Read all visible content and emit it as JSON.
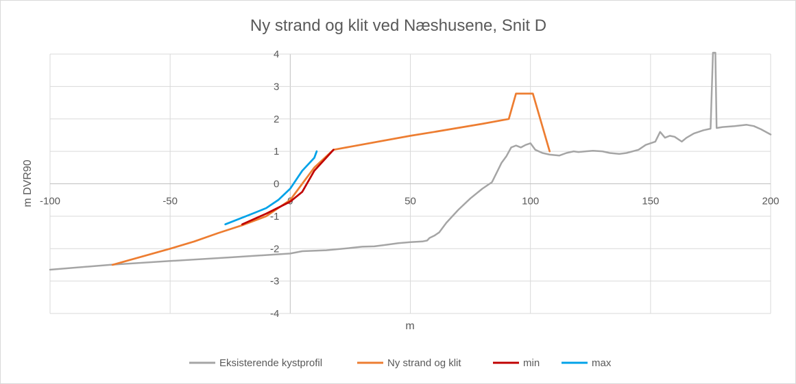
{
  "chart_data": {
    "type": "line",
    "title": "Ny strand og klit ved Næshusene,  Snit D",
    "xlabel": "m",
    "ylabel": "m DVR90",
    "xlim": [
      -100,
      200
    ],
    "ylim": [
      -4,
      4
    ],
    "x_ticks": [
      "-100",
      "-50",
      "0",
      "50",
      "100",
      "150",
      "200"
    ],
    "y_ticks": [
      "-4",
      "-3",
      "-2",
      "-1",
      "0",
      "1",
      "2",
      "3",
      "4"
    ],
    "grid": true,
    "legend_position": "bottom",
    "series": [
      {
        "name": "Eksisterende kystprofil",
        "color": "#a5a5a5",
        "points": [
          [
            -100,
            -2.65
          ],
          [
            -75,
            -2.5
          ],
          [
            -50,
            -2.38
          ],
          [
            -25,
            -2.27
          ],
          [
            0,
            -2.15
          ],
          [
            5,
            -2.08
          ],
          [
            15,
            -2.05
          ],
          [
            25,
            -1.98
          ],
          [
            30,
            -1.94
          ],
          [
            35,
            -1.93
          ],
          [
            40,
            -1.88
          ],
          [
            45,
            -1.83
          ],
          [
            50,
            -1.8
          ],
          [
            55,
            -1.78
          ],
          [
            57,
            -1.75
          ],
          [
            58,
            -1.67
          ],
          [
            60,
            -1.6
          ],
          [
            62,
            -1.5
          ],
          [
            65,
            -1.2
          ],
          [
            70,
            -0.8
          ],
          [
            75,
            -0.45
          ],
          [
            80,
            -0.15
          ],
          [
            84,
            0.05
          ],
          [
            86,
            0.35
          ],
          [
            88,
            0.65
          ],
          [
            90,
            0.85
          ],
          [
            92,
            1.12
          ],
          [
            94,
            1.18
          ],
          [
            96,
            1.12
          ],
          [
            98,
            1.2
          ],
          [
            100,
            1.25
          ],
          [
            102,
            1.05
          ],
          [
            105,
            0.95
          ],
          [
            108,
            0.9
          ],
          [
            112,
            0.87
          ],
          [
            115,
            0.95
          ],
          [
            118,
            1.0
          ],
          [
            120,
            0.98
          ],
          [
            123,
            1.0
          ],
          [
            126,
            1.02
          ],
          [
            130,
            1.0
          ],
          [
            133,
            0.95
          ],
          [
            137,
            0.92
          ],
          [
            140,
            0.95
          ],
          [
            145,
            1.05
          ],
          [
            148,
            1.2
          ],
          [
            150,
            1.25
          ],
          [
            152,
            1.3
          ],
          [
            154,
            1.6
          ],
          [
            156,
            1.42
          ],
          [
            158,
            1.48
          ],
          [
            160,
            1.45
          ],
          [
            163,
            1.3
          ],
          [
            165,
            1.42
          ],
          [
            168,
            1.55
          ],
          [
            172,
            1.65
          ],
          [
            175,
            1.7
          ],
          [
            176,
            4.2
          ],
          [
            177,
            4.2
          ],
          [
            177.5,
            1.72
          ],
          [
            180,
            1.75
          ],
          [
            185,
            1.78
          ],
          [
            190,
            1.82
          ],
          [
            193,
            1.78
          ],
          [
            196,
            1.68
          ],
          [
            200,
            1.52
          ]
        ]
      },
      {
        "name": "Ny strand og klit",
        "color": "#ed7d31",
        "points": [
          [
            -74,
            -2.5
          ],
          [
            -50,
            -2.0
          ],
          [
            -40,
            -1.78
          ],
          [
            -30,
            -1.52
          ],
          [
            -20,
            -1.28
          ],
          [
            -10,
            -1.0
          ],
          [
            0,
            -0.5
          ],
          [
            5,
            0.0
          ],
          [
            10,
            0.5
          ],
          [
            18,
            1.05
          ],
          [
            50,
            1.48
          ],
          [
            60,
            1.6
          ],
          [
            80,
            1.85
          ],
          [
            91,
            2.0
          ],
          [
            94,
            2.78
          ],
          [
            101,
            2.78
          ],
          [
            108,
            1.0
          ]
        ]
      },
      {
        "name": "min",
        "color": "#c00000",
        "points": [
          [
            -20,
            -1.25
          ],
          [
            -10,
            -0.92
          ],
          [
            0,
            -0.55
          ],
          [
            5,
            -0.25
          ],
          [
            10,
            0.4
          ],
          [
            18,
            1.05
          ]
        ]
      },
      {
        "name": "max",
        "color": "#00a2e8",
        "points": [
          [
            -27,
            -1.25
          ],
          [
            -15,
            -0.9
          ],
          [
            -10,
            -0.75
          ],
          [
            -5,
            -0.5
          ],
          [
            0,
            -0.15
          ],
          [
            5,
            0.4
          ],
          [
            10,
            0.8
          ],
          [
            11,
            1.0
          ]
        ]
      }
    ]
  }
}
